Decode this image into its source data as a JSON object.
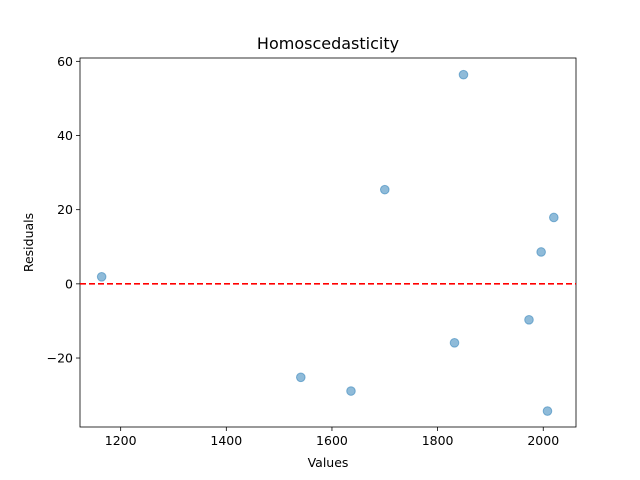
{
  "chart_data": {
    "type": "scatter",
    "title": "Homoscedasticity",
    "xlabel": "Values",
    "ylabel": "Residuals",
    "xlim": [
      1123,
      2062
    ],
    "ylim": [
      -38.6,
      60.9
    ],
    "xticks": [
      1200,
      1400,
      1600,
      1800,
      2000
    ],
    "yticks": [
      -20,
      0,
      20,
      40,
      60
    ],
    "grid": false,
    "point_color": "#1f77b4",
    "point_alpha": 0.5,
    "reference_line": {
      "y": 0,
      "color": "#ff0000",
      "style": "dashed"
    },
    "points": [
      {
        "x": 1164,
        "y": 1.9
      },
      {
        "x": 1541,
        "y": -25.2
      },
      {
        "x": 1636,
        "y": -28.9
      },
      {
        "x": 1700,
        "y": 25.4
      },
      {
        "x": 1832,
        "y": -15.9
      },
      {
        "x": 1849,
        "y": 56.4
      },
      {
        "x": 1973,
        "y": -9.7
      },
      {
        "x": 1996,
        "y": 8.6
      },
      {
        "x": 2008,
        "y": -34.3
      },
      {
        "x": 2020,
        "y": 17.9
      }
    ]
  }
}
